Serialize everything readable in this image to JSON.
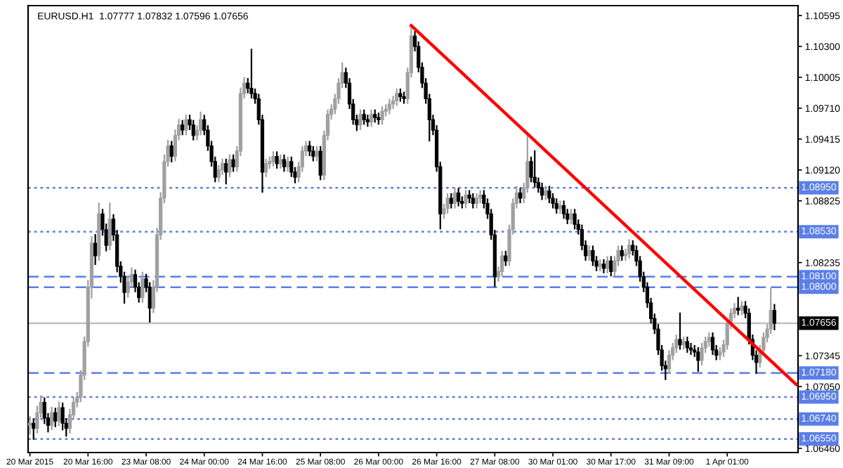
{
  "chart_data": {
    "type": "candlestick",
    "title": "EURUSD.H1  1.07777 1.07832 1.07596 1.07656",
    "categories": [
      "20 Mar 2015",
      null,
      null,
      null,
      null,
      null,
      null,
      null,
      null,
      null,
      null,
      null,
      null,
      null,
      null,
      null,
      "20 Mar 16:00",
      null,
      null,
      null,
      null,
      null,
      null,
      null,
      null,
      null,
      null,
      null,
      null,
      null,
      null,
      null,
      "23 Mar 08:00",
      null,
      null,
      null,
      null,
      null,
      null,
      null,
      null,
      null,
      null,
      null,
      null,
      null,
      null,
      null,
      "24 Mar 00:00",
      null,
      null,
      null,
      null,
      null,
      null,
      null,
      null,
      null,
      null,
      null,
      null,
      null,
      null,
      null,
      "24 Mar 16:00",
      null,
      null,
      null,
      null,
      null,
      null,
      null,
      null,
      null,
      null,
      null,
      null,
      null,
      null,
      null,
      "25 Mar 08:00",
      null,
      null,
      null,
      null,
      null,
      null,
      null,
      null,
      null,
      null,
      null,
      null,
      null,
      null,
      null,
      "26 Mar 00:00",
      null,
      null,
      null,
      null,
      null,
      null,
      null,
      null,
      null,
      null,
      null,
      null,
      null,
      null,
      null,
      "26 Mar 16:00",
      null,
      null,
      null,
      null,
      null,
      null,
      null,
      null,
      null,
      null,
      null,
      null,
      null,
      null,
      null,
      "27 Mar 08:00",
      null,
      null,
      null,
      null,
      null,
      null,
      null,
      null,
      null,
      null,
      null,
      null,
      null,
      null,
      null,
      "30 Mar 01:00",
      null,
      null,
      null,
      null,
      null,
      null,
      null,
      null,
      null,
      null,
      null,
      null,
      null,
      null,
      null,
      "30 Mar 17:00",
      null,
      null,
      null,
      null,
      null,
      null,
      null,
      null,
      null,
      null,
      null,
      null,
      null,
      null,
      null,
      "31 Mar 09:00",
      null,
      null,
      null,
      null,
      null,
      null,
      null,
      null,
      null,
      null,
      null,
      null,
      null,
      null,
      null,
      "1 Apr 01:00",
      null,
      null,
      null,
      null,
      null,
      null,
      null,
      null,
      null,
      null,
      null,
      null,
      null,
      null,
      null,
      null,
      null,
      null,
      null
    ],
    "ohlc": [
      [
        1.0668,
        1.0676,
        1.066,
        1.067
      ],
      [
        1.067,
        1.0674,
        1.0655,
        1.0665
      ],
      [
        1.0665,
        1.0686,
        1.0661,
        1.068
      ],
      [
        1.068,
        1.0696,
        1.0676,
        1.069
      ],
      [
        1.069,
        1.0694,
        1.067,
        1.0675
      ],
      [
        1.0675,
        1.0679,
        1.0662,
        1.0668
      ],
      [
        1.0668,
        1.0685,
        1.0664,
        1.068
      ],
      [
        1.068,
        1.0684,
        1.0667,
        1.0672
      ],
      [
        1.0672,
        1.069,
        1.0668,
        1.0685
      ],
      [
        1.0685,
        1.0689,
        1.0664,
        1.067
      ],
      [
        1.067,
        1.0674,
        1.0658,
        1.0665
      ],
      [
        1.0665,
        1.0683,
        1.0661,
        1.0678
      ],
      [
        1.0678,
        1.0694,
        1.0674,
        1.069
      ],
      [
        1.069,
        1.0699,
        1.0686,
        1.0695
      ],
      [
        1.0695,
        1.072,
        1.0691,
        1.0716
      ],
      [
        1.0716,
        1.0752,
        1.0712,
        1.0748
      ],
      [
        1.0748,
        1.0806,
        1.0744,
        1.08
      ],
      [
        1.08,
        1.0848,
        1.079,
        1.0842
      ],
      [
        1.0842,
        1.085,
        1.0822,
        1.083
      ],
      [
        1.083,
        1.088,
        1.0826,
        1.087
      ],
      [
        1.087,
        1.0874,
        1.085,
        1.0855
      ],
      [
        1.0855,
        1.086,
        1.0835,
        1.084
      ],
      [
        1.084,
        1.088,
        1.0836,
        1.0865
      ],
      [
        1.0865,
        1.0869,
        1.0845,
        1.085
      ],
      [
        1.085,
        1.0854,
        1.0815,
        1.082
      ],
      [
        1.082,
        1.0824,
        1.0805,
        1.081
      ],
      [
        1.081,
        1.0814,
        1.0785,
        1.0795
      ],
      [
        1.0795,
        1.081,
        1.0791,
        1.0805
      ],
      [
        1.0805,
        1.0818,
        1.0801,
        1.0812
      ],
      [
        1.0812,
        1.0816,
        1.0796,
        1.08
      ],
      [
        1.08,
        1.0804,
        1.0786,
        1.079
      ],
      [
        1.079,
        1.0814,
        1.0786,
        1.0808
      ],
      [
        1.0808,
        1.0812,
        1.0796,
        1.08
      ],
      [
        1.08,
        1.0804,
        1.0767,
        1.078
      ],
      [
        1.078,
        1.0806,
        1.0776,
        1.08
      ],
      [
        1.08,
        1.0856,
        1.0796,
        1.085
      ],
      [
        1.085,
        1.089,
        1.0846,
        1.0885
      ],
      [
        1.0885,
        1.0926,
        1.0881,
        1.092
      ],
      [
        1.092,
        1.094,
        1.0916,
        1.0935
      ],
      [
        1.0935,
        1.0939,
        1.092,
        1.0925
      ],
      [
        1.0925,
        1.095,
        1.0921,
        1.0945
      ],
      [
        1.0945,
        1.096,
        1.0941,
        1.0955
      ],
      [
        1.0955,
        1.0959,
        1.0946,
        1.095
      ],
      [
        1.095,
        1.0964,
        1.0946,
        1.096
      ],
      [
        1.096,
        1.0964,
        1.0951,
        1.0955
      ],
      [
        1.0955,
        1.0959,
        1.0941,
        1.0945
      ],
      [
        1.0945,
        1.0954,
        1.0941,
        1.095
      ],
      [
        1.095,
        1.0967,
        1.0946,
        1.096
      ],
      [
        1.096,
        1.0964,
        1.0946,
        1.095
      ],
      [
        1.095,
        1.0954,
        1.0931,
        1.0935
      ],
      [
        1.0935,
        1.0939,
        1.0916,
        1.092
      ],
      [
        1.092,
        1.0924,
        1.0901,
        1.0905
      ],
      [
        1.0905,
        1.0916,
        1.0901,
        1.0912
      ],
      [
        1.0912,
        1.0922,
        1.0908,
        1.0918
      ],
      [
        1.0918,
        1.0922,
        1.0899,
        1.091
      ],
      [
        1.091,
        1.0926,
        1.0906,
        1.0922
      ],
      [
        1.0922,
        1.0926,
        1.0911,
        1.0915
      ],
      [
        1.0915,
        1.0934,
        1.0911,
        1.093
      ],
      [
        1.093,
        1.099,
        1.0926,
        1.0985
      ],
      [
        1.0985,
        1.1,
        1.0981,
        1.0995
      ],
      [
        1.0995,
        1.0999,
        1.0986,
        1.099
      ],
      [
        1.099,
        1.1027,
        1.0981,
        1.0985
      ],
      [
        1.0985,
        1.0989,
        1.0976,
        1.098
      ],
      [
        1.098,
        1.0984,
        1.0956,
        1.096
      ],
      [
        1.096,
        1.0964,
        1.0891,
        1.091
      ],
      [
        1.091,
        1.0922,
        1.0906,
        1.0918
      ],
      [
        1.0918,
        1.0924,
        1.0914,
        1.092
      ],
      [
        1.092,
        1.0929,
        1.0916,
        1.0925
      ],
      [
        1.0925,
        1.0929,
        1.0914,
        1.0918
      ],
      [
        1.0918,
        1.0926,
        1.0914,
        1.0922
      ],
      [
        1.0922,
        1.0926,
        1.0911,
        1.0915
      ],
      [
        1.0915,
        1.0924,
        1.0911,
        1.092
      ],
      [
        1.092,
        1.0924,
        1.0906,
        1.091
      ],
      [
        1.091,
        1.0914,
        1.09,
        1.0905
      ],
      [
        1.0905,
        1.0919,
        1.0901,
        1.0915
      ],
      [
        1.0915,
        1.0934,
        1.0911,
        1.093
      ],
      [
        1.093,
        1.0939,
        1.0926,
        1.0935
      ],
      [
        1.0935,
        1.0939,
        1.0926,
        1.093
      ],
      [
        1.093,
        1.0934,
        1.0921,
        1.0925
      ],
      [
        1.0925,
        1.0934,
        1.0921,
        1.093
      ],
      [
        1.093,
        1.0934,
        1.0903,
        1.0907
      ],
      [
        1.0907,
        1.0949,
        1.0903,
        1.0945
      ],
      [
        1.0945,
        1.0969,
        1.0941,
        1.0965
      ],
      [
        1.0965,
        1.0974,
        1.0961,
        1.097
      ],
      [
        1.097,
        1.0984,
        1.0966,
        1.098
      ],
      [
        1.098,
        1.0999,
        1.0976,
        1.0995
      ],
      [
        1.0995,
        1.1014,
        1.0991,
        1.1005
      ],
      [
        1.1005,
        1.1009,
        1.0991,
        1.0995
      ],
      [
        1.0995,
        1.0999,
        1.0971,
        1.0975
      ],
      [
        1.0975,
        1.0979,
        1.0956,
        1.096
      ],
      [
        1.096,
        1.0964,
        1.095,
        1.0955
      ],
      [
        1.0955,
        1.0969,
        1.0951,
        1.0965
      ],
      [
        1.0965,
        1.0969,
        1.0956,
        1.096
      ],
      [
        1.096,
        1.0964,
        1.0954,
        1.0958
      ],
      [
        1.0958,
        1.0969,
        1.0954,
        1.0965
      ],
      [
        1.0965,
        1.0969,
        1.0958,
        1.0962
      ],
      [
        1.0962,
        1.0966,
        1.0956,
        1.096
      ],
      [
        1.096,
        1.0972,
        1.0956,
        1.0968
      ],
      [
        1.0968,
        1.0974,
        1.0964,
        1.097
      ],
      [
        1.097,
        1.0979,
        1.0966,
        1.0975
      ],
      [
        1.0975,
        1.0982,
        1.0971,
        1.0978
      ],
      [
        1.0978,
        1.0989,
        1.0974,
        1.0985
      ],
      [
        1.0985,
        1.0989,
        1.0978,
        1.0982
      ],
      [
        1.0982,
        1.0986,
        1.0976,
        1.098
      ],
      [
        1.098,
        1.1009,
        1.0976,
        1.1005
      ],
      [
        1.1005,
        1.105,
        1.1001,
        1.104
      ],
      [
        1.104,
        1.1044,
        1.1026,
        1.103
      ],
      [
        1.103,
        1.1034,
        1.1006,
        1.101
      ],
      [
        1.101,
        1.1014,
        1.0991,
        1.0995
      ],
      [
        1.0995,
        1.0999,
        1.0976,
        1.098
      ],
      [
        1.098,
        1.0984,
        1.094,
        1.096
      ],
      [
        1.096,
        1.0964,
        1.0946,
        1.095
      ],
      [
        1.095,
        1.0954,
        1.0911,
        1.0915
      ],
      [
        1.0915,
        1.0919,
        1.0856,
        1.087
      ],
      [
        1.087,
        1.0879,
        1.0866,
        1.0875
      ],
      [
        1.0875,
        1.0889,
        1.0871,
        1.0885
      ],
      [
        1.0885,
        1.0889,
        1.0876,
        1.088
      ],
      [
        1.088,
        1.0894,
        1.0876,
        1.089
      ],
      [
        1.089,
        1.0894,
        1.0878,
        1.0882
      ],
      [
        1.0882,
        1.0886,
        1.0876,
        1.088
      ],
      [
        1.088,
        1.0892,
        1.0876,
        1.0888
      ],
      [
        1.0888,
        1.0892,
        1.0881,
        1.0885
      ],
      [
        1.0885,
        1.0889,
        1.0876,
        1.088
      ],
      [
        1.088,
        1.0889,
        1.0876,
        1.0885
      ],
      [
        1.0885,
        1.0892,
        1.0881,
        1.0888
      ],
      [
        1.0888,
        1.0892,
        1.0876,
        1.088
      ],
      [
        1.088,
        1.0884,
        1.0866,
        1.087
      ],
      [
        1.087,
        1.0874,
        1.0846,
        1.085
      ],
      [
        1.085,
        1.0854,
        1.0801,
        1.081
      ],
      [
        1.081,
        1.0819,
        1.0806,
        1.0815
      ],
      [
        1.0815,
        1.0834,
        1.0811,
        1.083
      ],
      [
        1.083,
        1.0834,
        1.0821,
        1.0825
      ],
      [
        1.0825,
        1.0859,
        1.0821,
        1.0855
      ],
      [
        1.0855,
        1.0884,
        1.0851,
        1.088
      ],
      [
        1.088,
        1.0896,
        1.0876,
        1.089
      ],
      [
        1.089,
        1.0894,
        1.0881,
        1.0885
      ],
      [
        1.0885,
        1.0899,
        1.0881,
        1.0895
      ],
      [
        1.0895,
        1.0944,
        1.0891,
        1.092
      ],
      [
        1.092,
        1.0924,
        1.0901,
        1.0905
      ],
      [
        1.0905,
        1.093,
        1.0896,
        1.09
      ],
      [
        1.09,
        1.0904,
        1.0891,
        1.0895
      ],
      [
        1.0895,
        1.0899,
        1.0884,
        1.0888
      ],
      [
        1.0888,
        1.0896,
        1.0884,
        1.0892
      ],
      [
        1.0892,
        1.0896,
        1.0881,
        1.0885
      ],
      [
        1.0885,
        1.0889,
        1.0876,
        1.088
      ],
      [
        1.088,
        1.0884,
        1.0871,
        1.0875
      ],
      [
        1.0875,
        1.0882,
        1.0871,
        1.0878
      ],
      [
        1.0878,
        1.0882,
        1.0866,
        1.087
      ],
      [
        1.087,
        1.0874,
        1.0861,
        1.0865
      ],
      [
        1.0865,
        1.0874,
        1.0861,
        1.087
      ],
      [
        1.087,
        1.0874,
        1.0856,
        1.086
      ],
      [
        1.086,
        1.0864,
        1.0851,
        1.0855
      ],
      [
        1.0855,
        1.0859,
        1.0836,
        1.084
      ],
      [
        1.084,
        1.0844,
        1.0826,
        1.083
      ],
      [
        1.083,
        1.0839,
        1.0826,
        1.0835
      ],
      [
        1.0835,
        1.0839,
        1.0821,
        1.0825
      ],
      [
        1.0825,
        1.0829,
        1.0816,
        1.082
      ],
      [
        1.082,
        1.0826,
        1.0816,
        1.0822
      ],
      [
        1.0822,
        1.0826,
        1.0814,
        1.0818
      ],
      [
        1.0818,
        1.0829,
        1.0814,
        1.0825
      ],
      [
        1.0825,
        1.0829,
        1.0811,
        1.0815
      ],
      [
        1.0815,
        1.0829,
        1.0811,
        1.0825
      ],
      [
        1.0825,
        1.0839,
        1.0821,
        1.0835
      ],
      [
        1.0835,
        1.0839,
        1.0826,
        1.083
      ],
      [
        1.083,
        1.0836,
        1.0826,
        1.0832
      ],
      [
        1.0832,
        1.0845,
        1.0828,
        1.084
      ],
      [
        1.084,
        1.0844,
        1.0831,
        1.0835
      ],
      [
        1.0835,
        1.0839,
        1.0821,
        1.0825
      ],
      [
        1.0825,
        1.0829,
        1.0806,
        1.081
      ],
      [
        1.081,
        1.0814,
        1.0796,
        1.08
      ],
      [
        1.08,
        1.0804,
        1.0781,
        1.0785
      ],
      [
        1.0785,
        1.0789,
        1.0766,
        1.077
      ],
      [
        1.077,
        1.0774,
        1.0756,
        1.076
      ],
      [
        1.076,
        1.0764,
        1.0736,
        1.074
      ],
      [
        1.074,
        1.0744,
        1.0721,
        1.0725
      ],
      [
        1.0725,
        1.0729,
        1.0712,
        1.0722
      ],
      [
        1.0722,
        1.0739,
        1.0718,
        1.0735
      ],
      [
        1.0735,
        1.0746,
        1.0731,
        1.0742
      ],
      [
        1.0742,
        1.0754,
        1.0738,
        1.075
      ],
      [
        1.075,
        1.0775,
        1.0741,
        1.0745
      ],
      [
        1.0745,
        1.0752,
        1.0741,
        1.0748
      ],
      [
        1.0748,
        1.0752,
        1.0738,
        1.0742
      ],
      [
        1.0742,
        1.0746,
        1.0736,
        1.074
      ],
      [
        1.074,
        1.0744,
        1.0734,
        1.0738
      ],
      [
        1.0738,
        1.0742,
        1.072,
        1.073
      ],
      [
        1.073,
        1.0746,
        1.0726,
        1.0742
      ],
      [
        1.0742,
        1.0752,
        1.0738,
        1.0748
      ],
      [
        1.0748,
        1.0756,
        1.0744,
        1.0752
      ],
      [
        1.0752,
        1.0756,
        1.0736,
        1.074
      ],
      [
        1.074,
        1.0744,
        1.0731,
        1.0735
      ],
      [
        1.0735,
        1.0742,
        1.0731,
        1.0738
      ],
      [
        1.0738,
        1.0749,
        1.0734,
        1.0745
      ],
      [
        1.0745,
        1.0769,
        1.0741,
        1.0765
      ],
      [
        1.0765,
        1.0779,
        1.0761,
        1.0775
      ],
      [
        1.0775,
        1.0784,
        1.0771,
        1.078
      ],
      [
        1.078,
        1.079,
        1.0774,
        1.0778
      ],
      [
        1.0778,
        1.0786,
        1.0774,
        1.0782
      ],
      [
        1.0782,
        1.0786,
        1.0771,
        1.0775
      ],
      [
        1.0775,
        1.0779,
        1.0746,
        1.075
      ],
      [
        1.075,
        1.0754,
        1.0731,
        1.0735
      ],
      [
        1.0735,
        1.0739,
        1.0718,
        1.0728
      ],
      [
        1.0728,
        1.0744,
        1.0724,
        1.074
      ],
      [
        1.074,
        1.0756,
        1.0736,
        1.0752
      ],
      [
        1.0752,
        1.0764,
        1.0748,
        1.076
      ],
      [
        1.076,
        1.0799,
        1.0756,
        1.0778
      ],
      [
        1.07777,
        1.07832,
        1.07596,
        1.07656
      ],
      null,
      null,
      null,
      null,
      null,
      null
    ],
    "series": [
      {
        "type": "line",
        "color": "#ff0000",
        "line_style": "solid",
        "values": [
          null,
          null,
          null,
          null,
          null,
          null,
          null,
          null,
          null,
          null,
          null,
          null,
          null,
          null,
          null,
          null,
          null,
          null,
          null,
          null,
          null,
          null,
          null,
          null,
          null,
          null,
          null,
          null,
          null,
          null,
          null,
          null,
          null,
          null,
          null,
          null,
          null,
          null,
          null,
          null,
          null,
          null,
          null,
          null,
          null,
          null,
          null,
          null,
          null,
          null,
          null,
          null,
          null,
          null,
          null,
          null,
          null,
          null,
          null,
          null,
          null,
          null,
          null,
          null,
          null,
          null,
          null,
          null,
          null,
          null,
          null,
          null,
          null,
          null,
          null,
          null,
          null,
          null,
          null,
          null,
          null,
          null,
          null,
          null,
          null,
          null,
          null,
          null,
          null,
          null,
          null,
          null,
          null,
          null,
          null,
          null,
          null,
          null,
          null,
          null,
          null,
          null,
          null,
          null,
          null,
          1.105,
          null,
          null,
          null,
          null,
          null,
          null,
          null,
          null,
          null,
          null,
          null,
          null,
          null,
          null,
          null,
          null,
          null,
          null,
          null,
          null,
          null,
          null,
          null,
          null,
          null,
          null,
          null,
          null,
          null,
          null,
          null,
          null,
          null,
          null,
          null,
          null,
          null,
          null,
          null,
          null,
          null,
          null,
          null,
          null,
          null,
          null,
          null,
          null,
          null,
          null,
          null,
          null,
          null,
          null,
          null,
          null,
          null,
          null,
          null,
          null,
          null,
          null,
          null,
          null,
          null,
          null,
          null,
          null,
          null,
          null,
          null,
          null,
          null,
          null,
          null,
          null,
          null,
          null,
          null,
          null,
          null,
          null,
          null,
          null,
          null,
          null,
          null,
          null,
          null,
          null,
          null,
          null,
          null,
          null,
          null,
          null,
          null,
          null,
          null,
          null,
          null,
          null,
          null,
          null,
          null,
          1.0707
        ]
      }
    ],
    "ylim": [
      1.0642,
      1.1069
    ],
    "yticks": [
      {
        "value": 1.10595,
        "label": "1.10595"
      },
      {
        "value": 1.103,
        "label": "1.10300"
      },
      {
        "value": 1.10005,
        "label": "1.10005"
      },
      {
        "value": 1.0971,
        "label": "1.09710"
      },
      {
        "value": 1.09415,
        "label": "1.09415"
      },
      {
        "value": 1.0912,
        "label": "1.09120"
      },
      {
        "value": 1.08825,
        "label": "1.08825"
      },
      {
        "value": 1.08235,
        "label": "1.08235"
      },
      {
        "value": 1.07345,
        "label": "1.07345"
      },
      {
        "value": 1.0705,
        "label": "1.07050"
      },
      {
        "value": 1.0646,
        "label": "1.06460"
      }
    ],
    "ref_lines": [
      {
        "axis": "y",
        "value": 1.0895,
        "label": "1.08950",
        "color": "#5b7fe6",
        "line_style": "dotted"
      },
      {
        "axis": "y",
        "value": 1.0853,
        "label": "1.08530",
        "color": "#5b7fe6",
        "line_style": "dotted"
      },
      {
        "axis": "y",
        "value": 1.081,
        "label": "1.08100",
        "color": "#5b7fe6",
        "line_style": "dashed"
      },
      {
        "axis": "y",
        "value": 1.08,
        "label": "1.08000",
        "color": "#5b7fe6",
        "line_style": "dashed"
      },
      {
        "axis": "y",
        "value": 1.07656,
        "label": "1.07656",
        "color": "#c0c0c0",
        "line_style": "solid"
      },
      {
        "axis": "y",
        "value": 1.0718,
        "label": "1.07180",
        "color": "#5b7fe6",
        "line_style": "dashed"
      },
      {
        "axis": "y",
        "value": 1.0695,
        "label": "1.06950",
        "color": "#5b7fe6",
        "line_style": "dotted"
      },
      {
        "axis": "y",
        "value": 1.0674,
        "label": "1.06740",
        "color": "#5b7fe6",
        "line_style": "dotted"
      },
      {
        "axis": "y",
        "value": 1.0655,
        "label": "1.06550",
        "color": "#5b7fe6",
        "line_style": "dotted"
      }
    ],
    "grid": false,
    "legend": false
  }
}
